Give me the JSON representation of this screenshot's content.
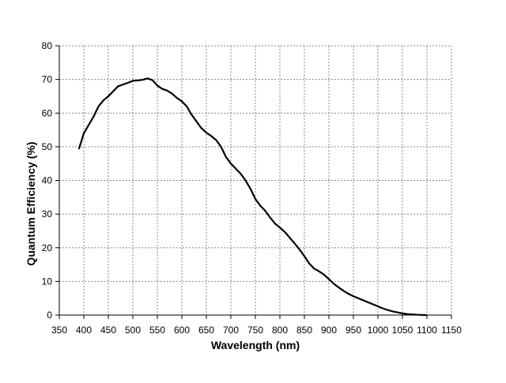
{
  "chart_data": {
    "type": "line",
    "xlabel": "Wavelength (nm)",
    "ylabel": "Quantum Efficiency (%)",
    "xlim": [
      350,
      1150
    ],
    "xticks": [
      350,
      400,
      450,
      500,
      550,
      600,
      650,
      700,
      750,
      800,
      850,
      900,
      950,
      1000,
      1050,
      1100,
      1150
    ],
    "ylim": [
      0,
      80
    ],
    "yticks": [
      0,
      10,
      20,
      30,
      40,
      50,
      60,
      70,
      80
    ],
    "grid": true,
    "series": [
      {
        "color": "#000000",
        "x": [
          390,
          400,
          410,
          420,
          430,
          440,
          450,
          460,
          470,
          480,
          490,
          500,
          510,
          520,
          530,
          540,
          550,
          560,
          570,
          580,
          590,
          600,
          610,
          620,
          630,
          640,
          650,
          660,
          670,
          680,
          690,
          700,
          710,
          720,
          730,
          740,
          750,
          760,
          770,
          780,
          790,
          800,
          810,
          820,
          830,
          840,
          850,
          860,
          870,
          880,
          890,
          900,
          910,
          920,
          930,
          940,
          950,
          960,
          970,
          980,
          990,
          1000,
          1010,
          1020,
          1030,
          1040,
          1050,
          1060,
          1070,
          1080,
          1090,
          1100
        ],
        "values": [
          49.3,
          54,
          56.5,
          59,
          62,
          63.8,
          65,
          66.5,
          68,
          68.5,
          69,
          69.6,
          69.7,
          69.9,
          70.3,
          69.8,
          68.2,
          67.2,
          66.7,
          65.8,
          64.5,
          63.5,
          62,
          59.5,
          57.5,
          55.5,
          54.2,
          53.2,
          52,
          50,
          47,
          45,
          43.5,
          42,
          40,
          37.5,
          34.5,
          32.5,
          31,
          29,
          27.2,
          26,
          24.7,
          23,
          21.3,
          19.5,
          17.5,
          15.3,
          13.8,
          13,
          12,
          10.7,
          9.3,
          8.2,
          7.2,
          6.3,
          5.6,
          5,
          4.4,
          3.8,
          3.2,
          2.6,
          2.0,
          1.5,
          1.1,
          0.8,
          0.5,
          0.3,
          0.2,
          0.1,
          0.05,
          0
        ]
      }
    ]
  }
}
